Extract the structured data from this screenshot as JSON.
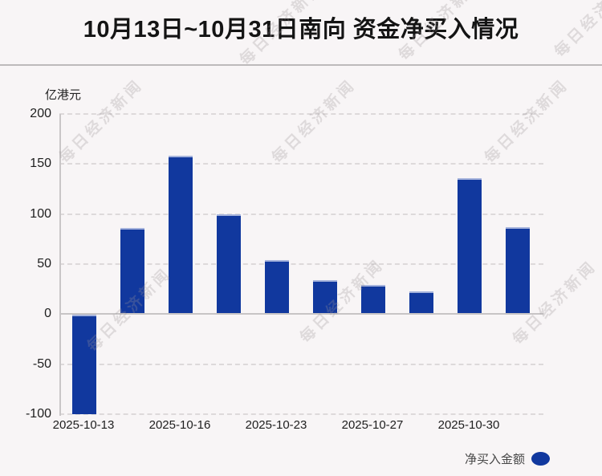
{
  "header": {
    "title": "10月13日~10月31日南向 资金净买入情况"
  },
  "watermark": {
    "text": "每日经济新闻"
  },
  "legend": {
    "label": "净买入金额",
    "marker_color": "#11389e"
  },
  "colors": {
    "background": "#f8f5f6",
    "bar": "#11389e",
    "gridline": "#ddd9da",
    "zero_line": "#c7c4c5"
  },
  "chart_data": {
    "type": "bar",
    "title": "10月13日~10月31日南向 资金净买入情况",
    "ylabel": "亿港元",
    "ylim": [
      -100,
      200
    ],
    "yticks": [
      200,
      150,
      100,
      50,
      0,
      -50,
      -100
    ],
    "grid": "horizontal-dashed",
    "legend_position": "bottom-right",
    "bar_color": "#11389e",
    "series": [
      {
        "name": "净买入金额",
        "values": [
          -100,
          86,
          158,
          100,
          54,
          34,
          29,
          23,
          136,
          87
        ]
      }
    ],
    "xticks": [
      {
        "label": "2025-10-13",
        "bar_index": 0
      },
      {
        "label": "2025-10-16",
        "bar_index": 2
      },
      {
        "label": "2025-10-23",
        "bar_index": 4
      },
      {
        "label": "2025-10-27",
        "bar_index": 6
      },
      {
        "label": "2025-10-30",
        "bar_index": 8
      }
    ]
  }
}
